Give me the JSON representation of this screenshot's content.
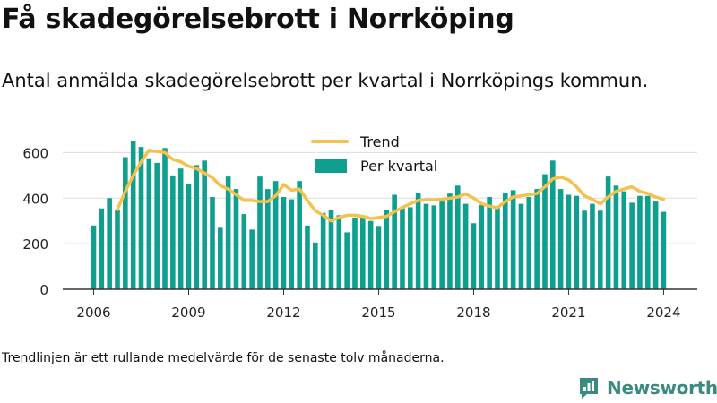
{
  "title": "Få skadegörelsebrott i Norrköping",
  "subtitle": "Antal anmälda skadegörelsebrott per kvartal i Norrköpings kommun.",
  "footnote": "Trendlinjen är ett rullande medelvärde för de senaste tolv månaderna.",
  "brand": {
    "name": "Newsworthy",
    "icon": "newsworthy-logo-icon",
    "color": "#3a8a80"
  },
  "colors": {
    "bars": "#0f9f8f",
    "trend": "#f5c14b",
    "grid": "#dddddd",
    "axis": "#333333"
  },
  "legend": {
    "trend_label": "Trend",
    "bars_label": "Per kvartal",
    "placement": "top-center"
  },
  "chart_data": {
    "type": "bar",
    "title": "",
    "xlabel": "",
    "ylabel": "",
    "ylim": [
      0,
      700
    ],
    "yticks": [
      0,
      200,
      400,
      600
    ],
    "xticks": [
      2006,
      2009,
      2012,
      2015,
      2018,
      2021,
      2024
    ],
    "x_start": 2006,
    "grid": true,
    "series": [
      {
        "name": "Per kvartal",
        "kind": "bar",
        "values": [
          280,
          355,
          400,
          350,
          580,
          650,
          625,
          575,
          555,
          620,
          500,
          530,
          460,
          545,
          565,
          405,
          270,
          495,
          440,
          330,
          262,
          495,
          440,
          475,
          405,
          395,
          475,
          280,
          205,
          335,
          350,
          325,
          250,
          315,
          318,
          300,
          278,
          348,
          415,
          355,
          360,
          425,
          375,
          368,
          385,
          420,
          455,
          375,
          290,
          370,
          405,
          360,
          425,
          435,
          375,
          405,
          440,
          505,
          565,
          440,
          415,
          410,
          345,
          375,
          345,
          495,
          455,
          430,
          380,
          410,
          410,
          385,
          340
        ]
      },
      {
        "name": "Trend",
        "kind": "line",
        "values": [
          null,
          null,
          null,
          350,
          430,
          500,
          560,
          610,
          605,
          600,
          570,
          560,
          540,
          530,
          510,
          490,
          455,
          440,
          415,
          390,
          390,
          385,
          385,
          410,
          460,
          435,
          440,
          390,
          345,
          325,
          300,
          315,
          325,
          325,
          320,
          310,
          315,
          320,
          340,
          360,
          375,
          390,
          392,
          392,
          395,
          400,
          405,
          418,
          400,
          375,
          365,
          358,
          385,
          405,
          410,
          415,
          420,
          450,
          485,
          492,
          480,
          450,
          410,
          395,
          375,
          405,
          430,
          440,
          450,
          430,
          420,
          405,
          395
        ]
      }
    ]
  }
}
